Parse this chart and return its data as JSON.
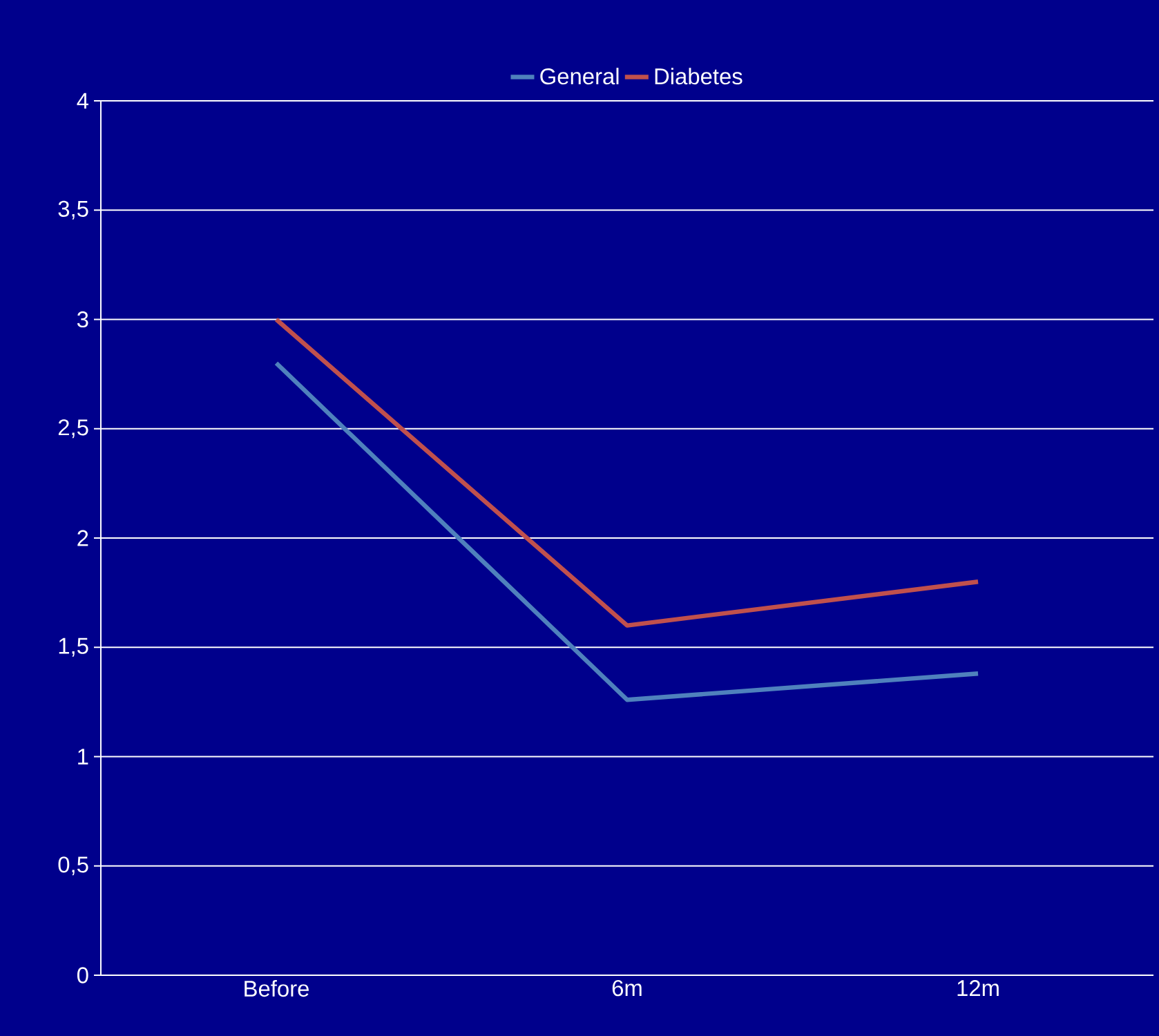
{
  "chart_data": {
    "type": "line",
    "categories": [
      "Before",
      "6m",
      "12m"
    ],
    "series": [
      {
        "name": "General",
        "color": "#4f81bd",
        "values": [
          2.8,
          1.26,
          1.38
        ]
      },
      {
        "name": "Diabetes",
        "color": "#c0504d",
        "values": [
          3.0,
          1.6,
          1.8
        ]
      }
    ],
    "ylim": [
      0,
      4
    ],
    "yticks": [
      0,
      {
        "value": 0.5,
        "label": "0,5"
      },
      1,
      {
        "value": 1.5,
        "label": "1,5"
      },
      2,
      {
        "value": 2.5,
        "label": "2,5"
      },
      3,
      {
        "value": 3.5,
        "label": "3,5"
      },
      4
    ],
    "grid": "y",
    "legend": "top",
    "marker": "none",
    "line_style": "solid"
  }
}
